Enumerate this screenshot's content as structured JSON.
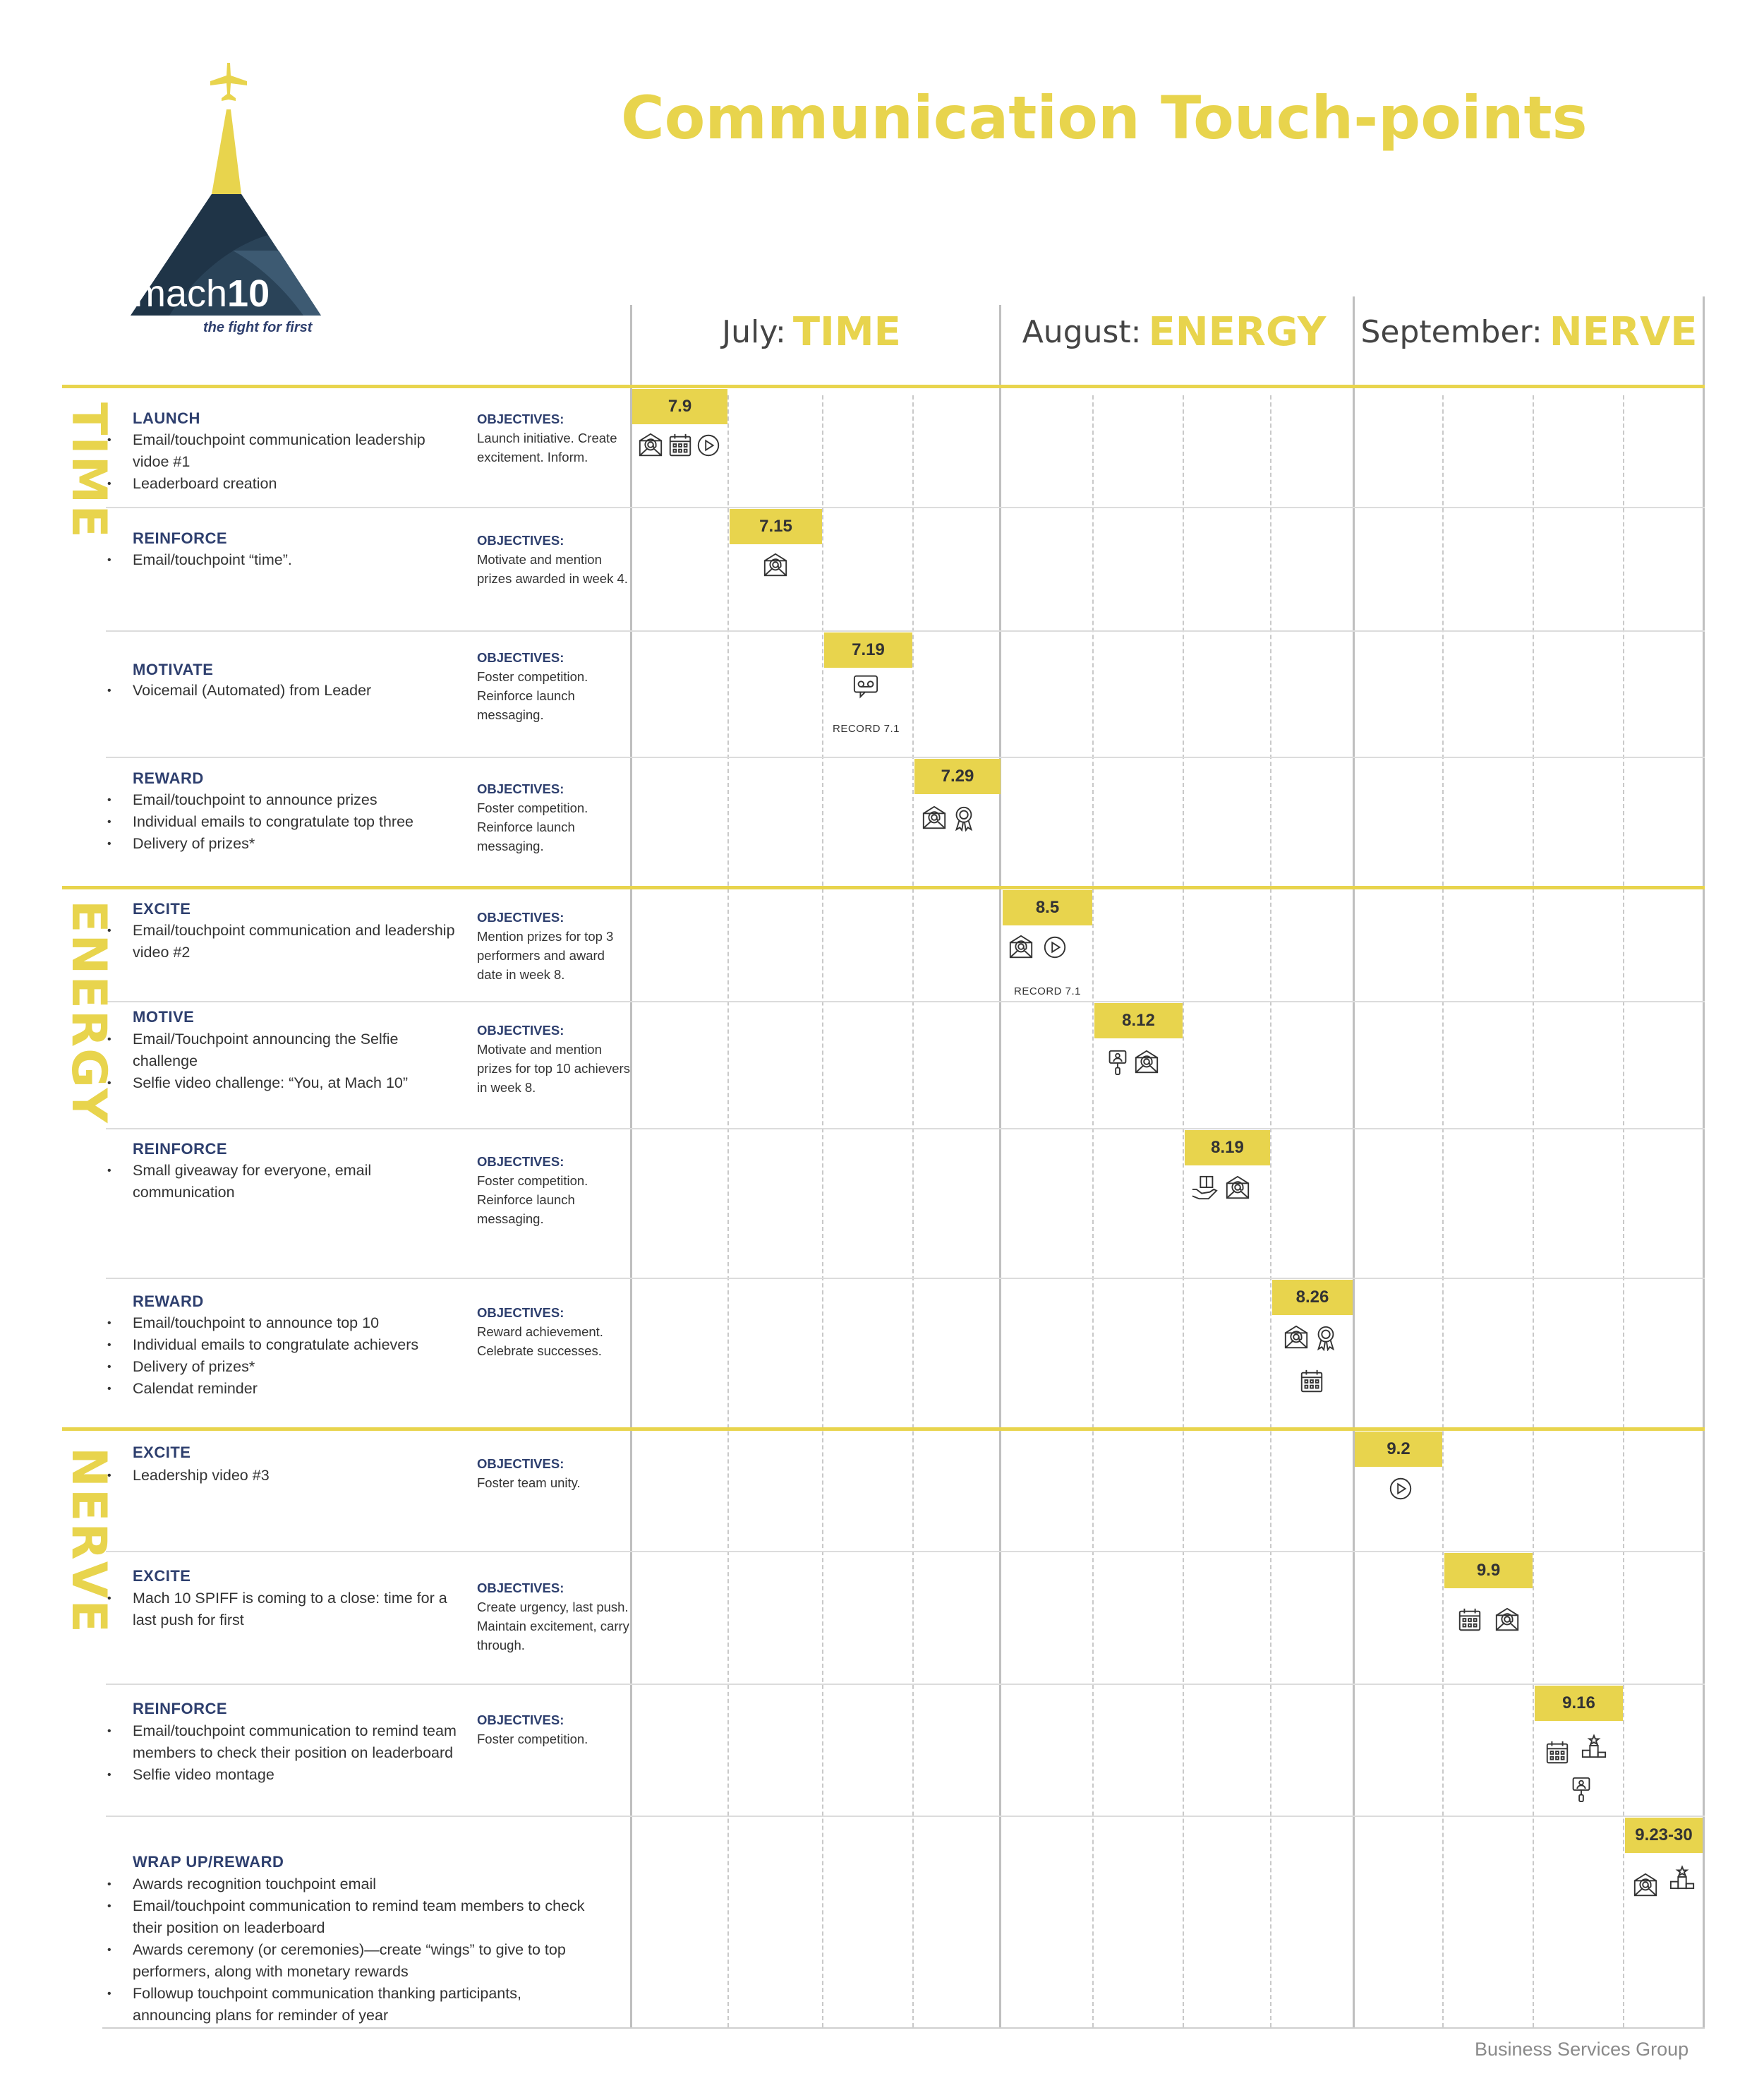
{
  "title": "Communication Touch-points",
  "brand": {
    "logo_text": "mach",
    "logo_number": "10",
    "tagline": "the fight for first"
  },
  "months": [
    {
      "name": "July:",
      "theme": "TIME"
    },
    {
      "name": "August:",
      "theme": "ENERGY"
    },
    {
      "name": "September:",
      "theme": "NERVE"
    }
  ],
  "themes": [
    "TIME",
    "ENERGY",
    "NERVE"
  ],
  "objectives_label": "OBJECTIVES:",
  "rows": [
    {
      "title": "LAUNCH",
      "bullets": [
        "Email/touchpoint communication leadership vidoe #1",
        "Leaderboard creation"
      ],
      "objectives": "Launch initiative. Create excitement. Inform.",
      "date": "7.9",
      "icons": [
        "email-icon",
        "calendar-icon",
        "play-icon"
      ],
      "note": ""
    },
    {
      "title": "REINFORCE",
      "bullets": [
        "Email/touchpoint “time”."
      ],
      "objectives": "Motivate and mention prizes awarded in week 4.",
      "date": "7.15",
      "icons": [
        "email-icon"
      ],
      "note": ""
    },
    {
      "title": "MOTIVATE",
      "bullets": [
        "Voicemail (Automated) from Leader"
      ],
      "objectives": "Foster competition. Reinforce launch messaging.",
      "date": "7.19",
      "icons": [
        "voicemail-icon"
      ],
      "note": "RECORD 7.1"
    },
    {
      "title": "REWARD",
      "bullets": [
        "Email/touchpoint to announce prizes",
        "Individual emails to congratulate top three",
        "Delivery of prizes*"
      ],
      "objectives": "Foster competition. Reinforce launch messaging.",
      "date": "7.29",
      "icons": [
        "email-icon",
        "award-ribbon-icon"
      ],
      "note": ""
    },
    {
      "title": "EXCITE",
      "bullets": [
        "Email/touchpoint communication and leadership video #2"
      ],
      "objectives": "Mention prizes for top 3 performers and award date in week 8.",
      "date": "8.5",
      "icons": [
        "email-icon",
        "play-icon"
      ],
      "note": "RECORD 7.1"
    },
    {
      "title": "MOTIVE",
      "bullets": [
        "Email/Touchpoint announcing the Selfie challenge",
        "Selfie video challenge: “You, at Mach 10”"
      ],
      "objectives": "Motivate and mention prizes for top 10 achievers in week 8.",
      "date": "8.12",
      "icons": [
        "selfie-stick-icon",
        "email-icon"
      ],
      "note": ""
    },
    {
      "title": "REINFORCE",
      "bullets": [
        "Small giveaway for everyone, email communication"
      ],
      "objectives": "Foster competition. Reinforce launch messaging.",
      "date": "8.19",
      "icons": [
        "gift-hand-icon",
        "email-icon"
      ],
      "note": ""
    },
    {
      "title": "REWARD",
      "bullets": [
        "Email/touchpoint to announce top 10",
        "Individual emails to congratulate achievers",
        "Delivery of prizes*",
        "Calendat reminder"
      ],
      "objectives": "Reward achievement. Celebrate successes.",
      "date": "8.26",
      "icons": [
        "email-icon",
        "award-ribbon-icon",
        "calendar-icon"
      ],
      "note": ""
    },
    {
      "title": "EXCITE",
      "bullets": [
        "Leadership video #3"
      ],
      "objectives": "Foster team unity.",
      "date": "9.2",
      "icons": [
        "play-icon"
      ],
      "note": ""
    },
    {
      "title": "EXCITE",
      "bullets": [
        "Mach 10 SPIFF is coming to a close: time for a last push for first"
      ],
      "objectives": "Create urgency, last push. Maintain excitement, carry through.",
      "date": "9.9",
      "icons": [
        "calendar-icon",
        "email-icon"
      ],
      "note": ""
    },
    {
      "title": "REINFORCE",
      "bullets": [
        "Email/touchpoint communication to remind team members to check their position on leaderboard",
        "Selfie video montage"
      ],
      "objectives": "Foster competition.",
      "date": "9.16",
      "icons": [
        "calendar-icon",
        "podium-icon",
        "selfie-stick-icon"
      ],
      "note": ""
    },
    {
      "title": "WRAP UP/REWARD",
      "bullets": [
        "Awards recognition touchpoint email",
        "Email/touchpoint communication to remind team members to check their position on leaderboard",
        "Awards ceremony (or ceremonies)—create “wings” to give to top performers, along with monetary rewards",
        "Followup touchpoint communication thanking participants, announcing plans for reminder of year"
      ],
      "objectives": "",
      "date": "9.23-30",
      "icons": [
        "email-icon",
        "podium-icon"
      ],
      "note": ""
    }
  ],
  "footer": "Business Services Group",
  "colors": {
    "accent": "#e8d44d",
    "navy": "#2e3f6e",
    "logo_dark": "#2a4358",
    "grid": "#bfbfbf"
  }
}
